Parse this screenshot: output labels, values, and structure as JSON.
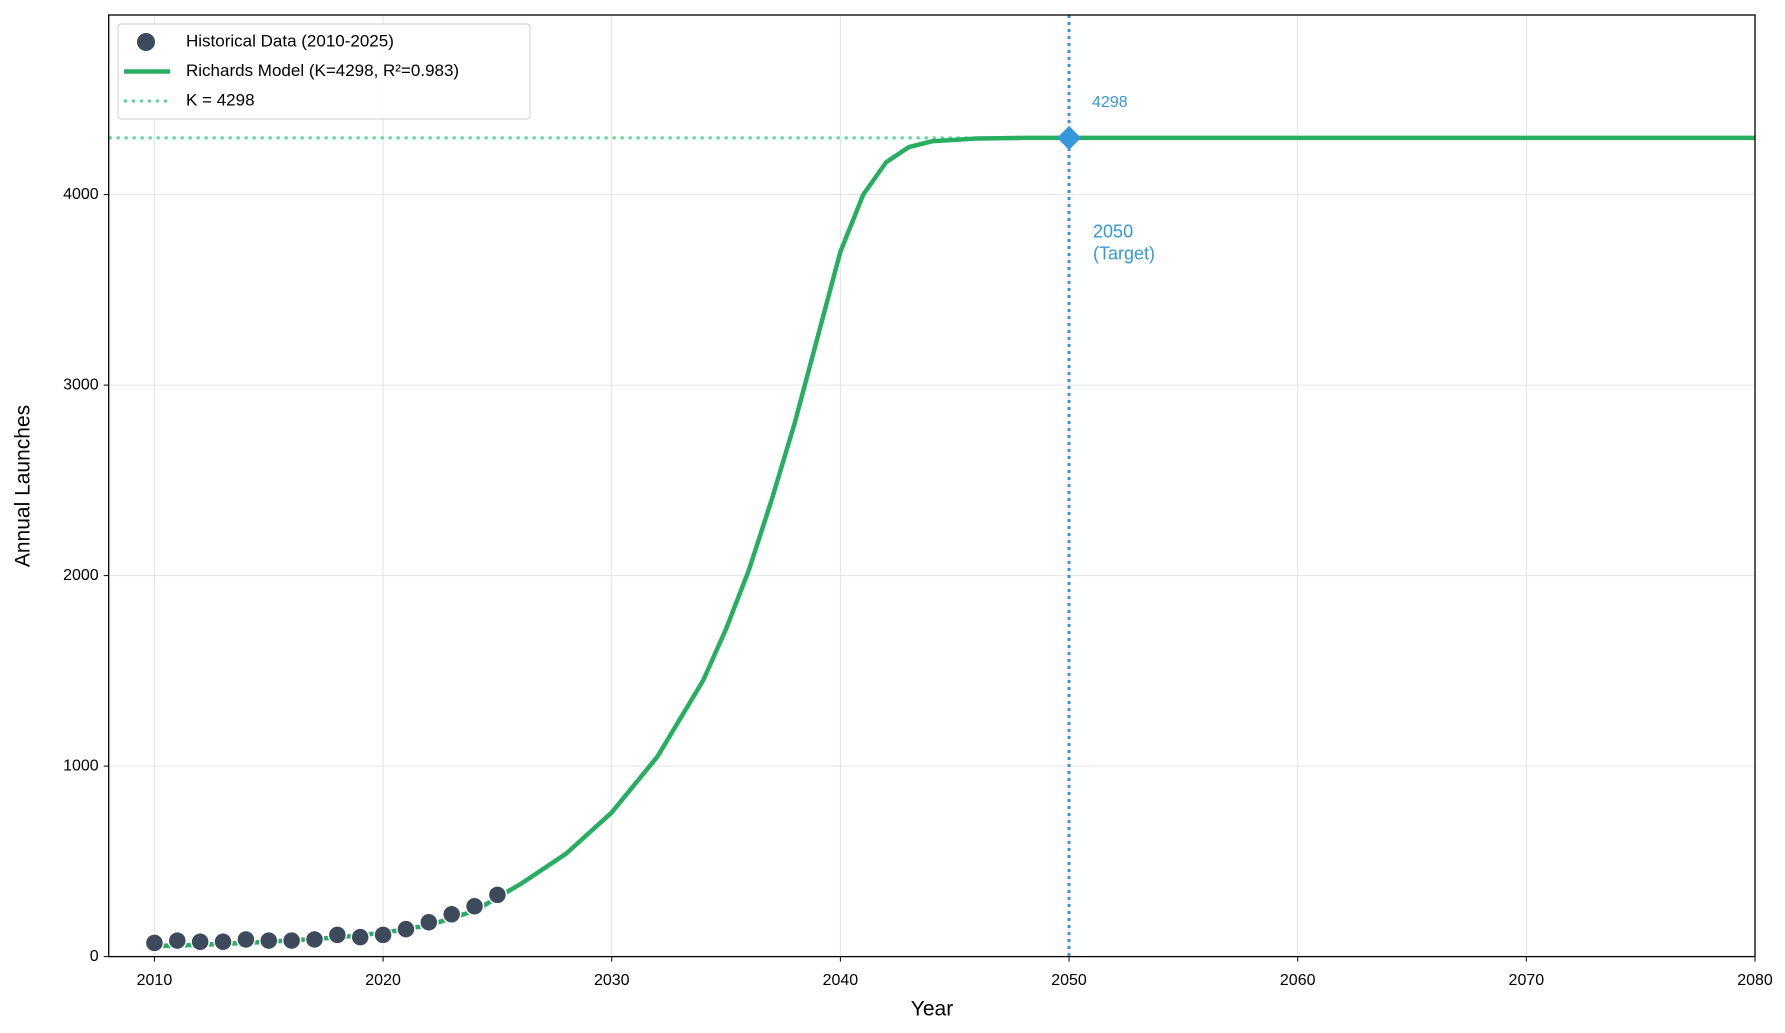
{
  "chart_data": {
    "type": "line",
    "xlabel": "Year",
    "ylabel": "Annual Launches",
    "xlim": [
      2008,
      2080
    ],
    "xticks": [
      2010,
      2020,
      2030,
      2040,
      2050,
      2060,
      2070,
      2080
    ],
    "ylim": [
      0,
      4943
    ],
    "yticks": [
      0,
      1000,
      2000,
      3000,
      4000
    ],
    "grid": true,
    "legend": "upper left",
    "series": [
      {
        "name": "Historical Data (2010-2025)",
        "kind": "scatter",
        "color": "#3d4a5c",
        "x": [
          2010,
          2011,
          2012,
          2013,
          2014,
          2015,
          2016,
          2017,
          2018,
          2019,
          2020,
          2021,
          2022,
          2023,
          2024,
          2025
        ],
        "values": [
          72,
          84,
          78,
          78,
          90,
          84,
          84,
          90,
          114,
          102,
          114,
          144,
          180,
          222,
          264,
          324
        ]
      },
      {
        "name": "Richards Model (K=4298, R²=0.983)",
        "kind": "line",
        "color": "#27ae60",
        "x": [
          2010,
          2012,
          2014,
          2016,
          2018,
          2020,
          2022,
          2024,
          2026,
          2028,
          2030,
          2032,
          2034,
          2035,
          2036,
          2037,
          2038,
          2039,
          2040,
          2041,
          2042,
          2043,
          2044,
          2046,
          2048,
          2050,
          2060,
          2070,
          2080
        ],
        "values": [
          55,
          62,
          72,
          85,
          100,
          125,
          165,
          240,
          380,
          540,
          757,
          1050,
          1450,
          1720,
          2030,
          2400,
          2800,
          3250,
          3700,
          4000,
          4170,
          4250,
          4280,
          4295,
          4298,
          4298,
          4298,
          4298,
          4298
        ]
      }
    ],
    "reference_line": {
      "name": "K = 4298",
      "value": 4298,
      "color": "#58d68d"
    },
    "target": {
      "x": 2050,
      "y": 4298,
      "color": "#3498db",
      "label": "4298",
      "annotation": [
        "2050",
        "(Target)"
      ]
    }
  }
}
